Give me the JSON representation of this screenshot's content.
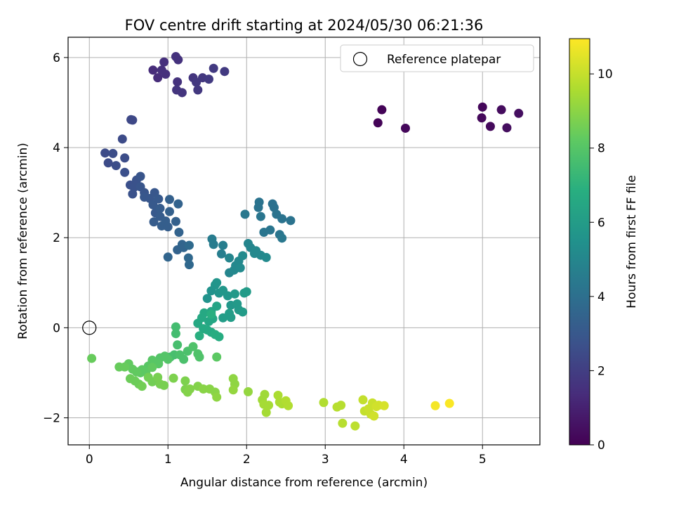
{
  "chart_data": {
    "type": "scatter",
    "title": "FOV centre drift starting at 2024/05/30 06:21:36",
    "xlabel": "Angular distance from reference (arcmin)",
    "ylabel": "Rotation from reference (arcmin)",
    "xlim": [
      -0.27,
      5.73
    ],
    "ylim": [
      -2.6,
      6.45
    ],
    "xticks": [
      0,
      1,
      2,
      3,
      4,
      5
    ],
    "yticks": [
      -2,
      0,
      2,
      4,
      6
    ],
    "grid": true,
    "legend": {
      "position": "top-right",
      "entries": [
        "Reference platepar"
      ]
    },
    "reference_point": {
      "x": 0,
      "y": 0,
      "label": "Reference platepar"
    },
    "colorbar": {
      "label": "Hours from first FF file",
      "range": [
        0,
        10.95
      ],
      "ticks": [
        0,
        2,
        4,
        6,
        8,
        10
      ],
      "colormap": "viridis"
    },
    "points": [
      {
        "x": 3.67,
        "y": 4.55,
        "c": 0.1
      },
      {
        "x": 3.72,
        "y": 4.84,
        "c": 0.1
      },
      {
        "x": 4.02,
        "y": 4.43,
        "c": 0.2
      },
      {
        "x": 5.0,
        "y": 4.9,
        "c": 0.2
      },
      {
        "x": 4.99,
        "y": 4.66,
        "c": 0.25
      },
      {
        "x": 5.1,
        "y": 4.47,
        "c": 0.3
      },
      {
        "x": 5.24,
        "y": 4.84,
        "c": 0.35
      },
      {
        "x": 5.31,
        "y": 4.44,
        "c": 0.4
      },
      {
        "x": 5.46,
        "y": 4.76,
        "c": 0.45
      },
      {
        "x": 0.81,
        "y": 5.72,
        "c": 1.4
      },
      {
        "x": 0.87,
        "y": 5.55,
        "c": 1.4
      },
      {
        "x": 0.92,
        "y": 5.72,
        "c": 1.5
      },
      {
        "x": 0.95,
        "y": 5.9,
        "c": 1.5
      },
      {
        "x": 0.97,
        "y": 5.63,
        "c": 1.5
      },
      {
        "x": 1.1,
        "y": 6.02,
        "c": 1.6
      },
      {
        "x": 1.13,
        "y": 5.95,
        "c": 1.6
      },
      {
        "x": 1.12,
        "y": 5.46,
        "c": 1.6
      },
      {
        "x": 1.11,
        "y": 5.28,
        "c": 1.7
      },
      {
        "x": 1.18,
        "y": 5.22,
        "c": 1.7
      },
      {
        "x": 1.32,
        "y": 5.55,
        "c": 1.7
      },
      {
        "x": 1.36,
        "y": 5.45,
        "c": 1.8
      },
      {
        "x": 1.38,
        "y": 5.28,
        "c": 1.8
      },
      {
        "x": 1.44,
        "y": 5.55,
        "c": 1.8
      },
      {
        "x": 1.52,
        "y": 5.52,
        "c": 1.9
      },
      {
        "x": 1.58,
        "y": 5.76,
        "c": 1.9
      },
      {
        "x": 1.72,
        "y": 5.69,
        "c": 1.9
      },
      {
        "x": 0.53,
        "y": 4.62,
        "c": 2.4
      },
      {
        "x": 0.55,
        "y": 4.61,
        "c": 2.4
      },
      {
        "x": 0.42,
        "y": 4.19,
        "c": 2.5
      },
      {
        "x": 0.2,
        "y": 3.88,
        "c": 2.5
      },
      {
        "x": 0.24,
        "y": 3.66,
        "c": 2.5
      },
      {
        "x": 0.3,
        "y": 3.87,
        "c": 2.6
      },
      {
        "x": 0.34,
        "y": 3.6,
        "c": 2.6
      },
      {
        "x": 0.45,
        "y": 3.77,
        "c": 2.6
      },
      {
        "x": 0.45,
        "y": 3.45,
        "c": 2.7
      },
      {
        "x": 0.52,
        "y": 3.17,
        "c": 2.7
      },
      {
        "x": 0.55,
        "y": 2.97,
        "c": 2.8
      },
      {
        "x": 0.57,
        "y": 3.12,
        "c": 2.8
      },
      {
        "x": 0.6,
        "y": 3.28,
        "c": 2.8
      },
      {
        "x": 0.65,
        "y": 3.36,
        "c": 2.9
      },
      {
        "x": 0.65,
        "y": 3.13,
        "c": 2.9
      },
      {
        "x": 0.7,
        "y": 3.0,
        "c": 2.9
      },
      {
        "x": 0.7,
        "y": 2.9,
        "c": 3.0
      },
      {
        "x": 0.77,
        "y": 2.87,
        "c": 3.0
      },
      {
        "x": 0.83,
        "y": 3.0,
        "c": 3.0
      },
      {
        "x": 0.81,
        "y": 2.73,
        "c": 3.1
      },
      {
        "x": 0.84,
        "y": 2.55,
        "c": 3.1
      },
      {
        "x": 0.88,
        "y": 2.86,
        "c": 3.1
      },
      {
        "x": 0.9,
        "y": 2.65,
        "c": 3.2
      },
      {
        "x": 0.82,
        "y": 2.35,
        "c": 3.2
      },
      {
        "x": 0.9,
        "y": 2.47,
        "c": 3.2
      },
      {
        "x": 0.92,
        "y": 2.26,
        "c": 3.3
      },
      {
        "x": 0.97,
        "y": 2.37,
        "c": 3.3
      },
      {
        "x": 1.0,
        "y": 2.24,
        "c": 3.3
      },
      {
        "x": 1.02,
        "y": 2.58,
        "c": 3.4
      },
      {
        "x": 1.02,
        "y": 2.85,
        "c": 3.4
      },
      {
        "x": 1.1,
        "y": 2.36,
        "c": 3.4
      },
      {
        "x": 1.13,
        "y": 2.75,
        "c": 3.5
      },
      {
        "x": 1.14,
        "y": 2.12,
        "c": 3.5
      },
      {
        "x": 1.12,
        "y": 1.73,
        "c": 3.5
      },
      {
        "x": 1.18,
        "y": 1.85,
        "c": 3.6
      },
      {
        "x": 1.2,
        "y": 1.78,
        "c": 3.6
      },
      {
        "x": 1.0,
        "y": 1.57,
        "c": 3.6
      },
      {
        "x": 1.26,
        "y": 1.55,
        "c": 3.7
      },
      {
        "x": 1.27,
        "y": 1.4,
        "c": 3.7
      },
      {
        "x": 1.27,
        "y": 1.83,
        "c": 3.8
      },
      {
        "x": 1.56,
        "y": 1.97,
        "c": 4.6
      },
      {
        "x": 1.58,
        "y": 1.85,
        "c": 4.6
      },
      {
        "x": 1.7,
        "y": 1.83,
        "c": 4.7
      },
      {
        "x": 1.68,
        "y": 1.64,
        "c": 4.7
      },
      {
        "x": 1.98,
        "y": 2.52,
        "c": 4.4
      },
      {
        "x": 2.16,
        "y": 2.79,
        "c": 4.2
      },
      {
        "x": 2.15,
        "y": 2.67,
        "c": 4.2
      },
      {
        "x": 2.18,
        "y": 2.47,
        "c": 4.3
      },
      {
        "x": 2.22,
        "y": 2.12,
        "c": 4.3
      },
      {
        "x": 2.33,
        "y": 2.75,
        "c": 4.1
      },
      {
        "x": 2.35,
        "y": 2.67,
        "c": 4.1
      },
      {
        "x": 2.38,
        "y": 2.52,
        "c": 4.2
      },
      {
        "x": 2.3,
        "y": 2.17,
        "c": 4.3
      },
      {
        "x": 2.42,
        "y": 2.07,
        "c": 4.3
      },
      {
        "x": 2.45,
        "y": 1.99,
        "c": 4.4
      },
      {
        "x": 2.45,
        "y": 2.42,
        "c": 4.2
      },
      {
        "x": 2.56,
        "y": 2.38,
        "c": 4.2
      },
      {
        "x": 1.78,
        "y": 1.55,
        "c": 5.0
      },
      {
        "x": 1.78,
        "y": 1.22,
        "c": 5.0
      },
      {
        "x": 1.84,
        "y": 1.28,
        "c": 5.1
      },
      {
        "x": 1.86,
        "y": 1.38,
        "c": 5.1
      },
      {
        "x": 1.9,
        "y": 1.48,
        "c": 5.1
      },
      {
        "x": 1.92,
        "y": 1.33,
        "c": 5.2
      },
      {
        "x": 1.95,
        "y": 1.6,
        "c": 5.2
      },
      {
        "x": 2.02,
        "y": 1.87,
        "c": 5.0
      },
      {
        "x": 2.05,
        "y": 1.78,
        "c": 5.0
      },
      {
        "x": 2.1,
        "y": 1.65,
        "c": 5.1
      },
      {
        "x": 2.18,
        "y": 1.61,
        "c": 5.1
      },
      {
        "x": 2.12,
        "y": 1.71,
        "c": 5.1
      },
      {
        "x": 2.25,
        "y": 1.56,
        "c": 5.2
      },
      {
        "x": 1.5,
        "y": 0.65,
        "c": 5.6
      },
      {
        "x": 1.55,
        "y": 0.82,
        "c": 5.6
      },
      {
        "x": 1.6,
        "y": 0.95,
        "c": 5.7
      },
      {
        "x": 1.62,
        "y": 1.0,
        "c": 5.7
      },
      {
        "x": 1.65,
        "y": 0.77,
        "c": 5.7
      },
      {
        "x": 1.7,
        "y": 0.83,
        "c": 5.8
      },
      {
        "x": 1.76,
        "y": 0.71,
        "c": 5.8
      },
      {
        "x": 1.8,
        "y": 0.5,
        "c": 5.8
      },
      {
        "x": 1.85,
        "y": 0.75,
        "c": 5.9
      },
      {
        "x": 1.88,
        "y": 0.53,
        "c": 5.9
      },
      {
        "x": 1.9,
        "y": 0.4,
        "c": 5.9
      },
      {
        "x": 1.95,
        "y": 0.35,
        "c": 6.0
      },
      {
        "x": 1.97,
        "y": 0.77,
        "c": 6.0
      },
      {
        "x": 2.0,
        "y": 0.8,
        "c": 6.0
      },
      {
        "x": 1.78,
        "y": 0.32,
        "c": 6.1
      },
      {
        "x": 1.8,
        "y": 0.23,
        "c": 6.1
      },
      {
        "x": 1.7,
        "y": 0.22,
        "c": 6.1
      },
      {
        "x": 1.62,
        "y": 0.48,
        "c": 6.4
      },
      {
        "x": 1.55,
        "y": 0.36,
        "c": 6.4
      },
      {
        "x": 1.57,
        "y": 0.2,
        "c": 6.5
      },
      {
        "x": 1.52,
        "y": 0.14,
        "c": 6.5
      },
      {
        "x": 1.46,
        "y": 0.33,
        "c": 6.6
      },
      {
        "x": 1.43,
        "y": 0.22,
        "c": 6.6
      },
      {
        "x": 1.38,
        "y": 0.1,
        "c": 6.6
      },
      {
        "x": 1.45,
        "y": -0.02,
        "c": 6.7
      },
      {
        "x": 1.5,
        "y": -0.05,
        "c": 6.7
      },
      {
        "x": 1.55,
        "y": -0.1,
        "c": 6.7
      },
      {
        "x": 1.6,
        "y": -0.15,
        "c": 6.8
      },
      {
        "x": 1.65,
        "y": -0.2,
        "c": 6.8
      },
      {
        "x": 1.4,
        "y": -0.18,
        "c": 6.9
      },
      {
        "x": 1.55,
        "y": 0.3,
        "c": 6.9
      },
      {
        "x": 1.1,
        "y": 0.02,
        "c": 7.6
      },
      {
        "x": 1.1,
        "y": -0.13,
        "c": 7.6
      },
      {
        "x": 1.03,
        "y": -0.65,
        "c": 7.7
      },
      {
        "x": 1.08,
        "y": -0.6,
        "c": 7.7
      },
      {
        "x": 1.12,
        "y": -0.38,
        "c": 7.7
      },
      {
        "x": 1.15,
        "y": -0.6,
        "c": 7.8
      },
      {
        "x": 1.2,
        "y": -0.7,
        "c": 7.8
      },
      {
        "x": 1.25,
        "y": -0.52,
        "c": 7.8
      },
      {
        "x": 1.32,
        "y": -0.42,
        "c": 7.9
      },
      {
        "x": 1.38,
        "y": -0.58,
        "c": 7.9
      },
      {
        "x": 1.4,
        "y": -0.65,
        "c": 7.9
      },
      {
        "x": 1.0,
        "y": -0.7,
        "c": 8.0
      },
      {
        "x": 0.96,
        "y": -0.63,
        "c": 8.0
      },
      {
        "x": 0.9,
        "y": -0.67,
        "c": 8.0
      },
      {
        "x": 0.88,
        "y": -0.8,
        "c": 8.1
      },
      {
        "x": 0.8,
        "y": -0.72,
        "c": 8.1
      },
      {
        "x": 0.75,
        "y": -0.85,
        "c": 8.1
      },
      {
        "x": 0.67,
        "y": -0.93,
        "c": 8.2
      },
      {
        "x": 0.72,
        "y": -0.98,
        "c": 8.2
      },
      {
        "x": 0.65,
        "y": -1.0,
        "c": 8.2
      },
      {
        "x": 0.6,
        "y": -0.98,
        "c": 8.3
      },
      {
        "x": 0.55,
        "y": -0.92,
        "c": 8.3
      },
      {
        "x": 0.5,
        "y": -0.8,
        "c": 8.3
      },
      {
        "x": 0.38,
        "y": -0.87,
        "c": 8.4
      },
      {
        "x": 0.45,
        "y": -0.87,
        "c": 8.4
      },
      {
        "x": 0.03,
        "y": -0.68,
        "c": 8.4
      },
      {
        "x": 0.52,
        "y": -1.13,
        "c": 8.5
      },
      {
        "x": 0.58,
        "y": -1.18,
        "c": 8.5
      },
      {
        "x": 0.63,
        "y": -1.25,
        "c": 8.5
      },
      {
        "x": 0.67,
        "y": -1.3,
        "c": 8.6
      },
      {
        "x": 0.75,
        "y": -1.1,
        "c": 8.6
      },
      {
        "x": 0.8,
        "y": -1.2,
        "c": 8.6
      },
      {
        "x": 0.87,
        "y": -1.1,
        "c": 8.7
      },
      {
        "x": 0.9,
        "y": -1.25,
        "c": 8.7
      },
      {
        "x": 0.95,
        "y": -1.28,
        "c": 8.7
      },
      {
        "x": 1.07,
        "y": -1.12,
        "c": 8.8
      },
      {
        "x": 1.22,
        "y": -1.18,
        "c": 8.8
      },
      {
        "x": 1.22,
        "y": -1.37,
        "c": 8.8
      },
      {
        "x": 1.25,
        "y": -1.43,
        "c": 8.9
      },
      {
        "x": 1.28,
        "y": -1.36,
        "c": 8.9
      },
      {
        "x": 1.38,
        "y": -1.3,
        "c": 8.9
      },
      {
        "x": 1.45,
        "y": -1.36,
        "c": 9.0
      },
      {
        "x": 1.53,
        "y": -1.36,
        "c": 9.0
      },
      {
        "x": 1.6,
        "y": -1.43,
        "c": 9.0
      },
      {
        "x": 1.62,
        "y": -1.54,
        "c": 9.1
      },
      {
        "x": 1.83,
        "y": -1.13,
        "c": 9.1
      },
      {
        "x": 1.85,
        "y": -1.25,
        "c": 9.1
      },
      {
        "x": 1.83,
        "y": -1.38,
        "c": 9.2
      },
      {
        "x": 2.02,
        "y": -1.42,
        "c": 9.2
      },
      {
        "x": 1.62,
        "y": -0.65,
        "c": 8.2
      },
      {
        "x": 0.8,
        "y": -0.88,
        "c": 8.3
      },
      {
        "x": 2.2,
        "y": -1.6,
        "c": 9.4
      },
      {
        "x": 2.23,
        "y": -1.48,
        "c": 9.4
      },
      {
        "x": 2.22,
        "y": -1.7,
        "c": 9.5
      },
      {
        "x": 2.25,
        "y": -1.88,
        "c": 9.5
      },
      {
        "x": 2.28,
        "y": -1.72,
        "c": 9.5
      },
      {
        "x": 2.4,
        "y": -1.5,
        "c": 9.6
      },
      {
        "x": 2.42,
        "y": -1.65,
        "c": 9.6
      },
      {
        "x": 2.45,
        "y": -1.69,
        "c": 9.6
      },
      {
        "x": 2.5,
        "y": -1.62,
        "c": 9.7
      },
      {
        "x": 2.53,
        "y": -1.73,
        "c": 9.7
      },
      {
        "x": 2.98,
        "y": -1.66,
        "c": 9.7
      },
      {
        "x": 3.15,
        "y": -1.76,
        "c": 9.8
      },
      {
        "x": 3.2,
        "y": -1.72,
        "c": 9.8
      },
      {
        "x": 3.22,
        "y": -2.12,
        "c": 9.8
      },
      {
        "x": 3.38,
        "y": -2.18,
        "c": 9.9
      },
      {
        "x": 3.48,
        "y": -1.6,
        "c": 10.0
      },
      {
        "x": 3.5,
        "y": -1.85,
        "c": 10.0
      },
      {
        "x": 3.55,
        "y": -1.8,
        "c": 10.1
      },
      {
        "x": 3.58,
        "y": -1.92,
        "c": 10.1
      },
      {
        "x": 3.6,
        "y": -1.67,
        "c": 10.1
      },
      {
        "x": 3.62,
        "y": -1.96,
        "c": 10.2
      },
      {
        "x": 3.65,
        "y": -1.75,
        "c": 10.2
      },
      {
        "x": 3.68,
        "y": -1.72,
        "c": 10.2
      },
      {
        "x": 3.75,
        "y": -1.73,
        "c": 10.3
      },
      {
        "x": 4.4,
        "y": -1.73,
        "c": 10.8
      },
      {
        "x": 4.58,
        "y": -1.68,
        "c": 10.9
      }
    ]
  }
}
